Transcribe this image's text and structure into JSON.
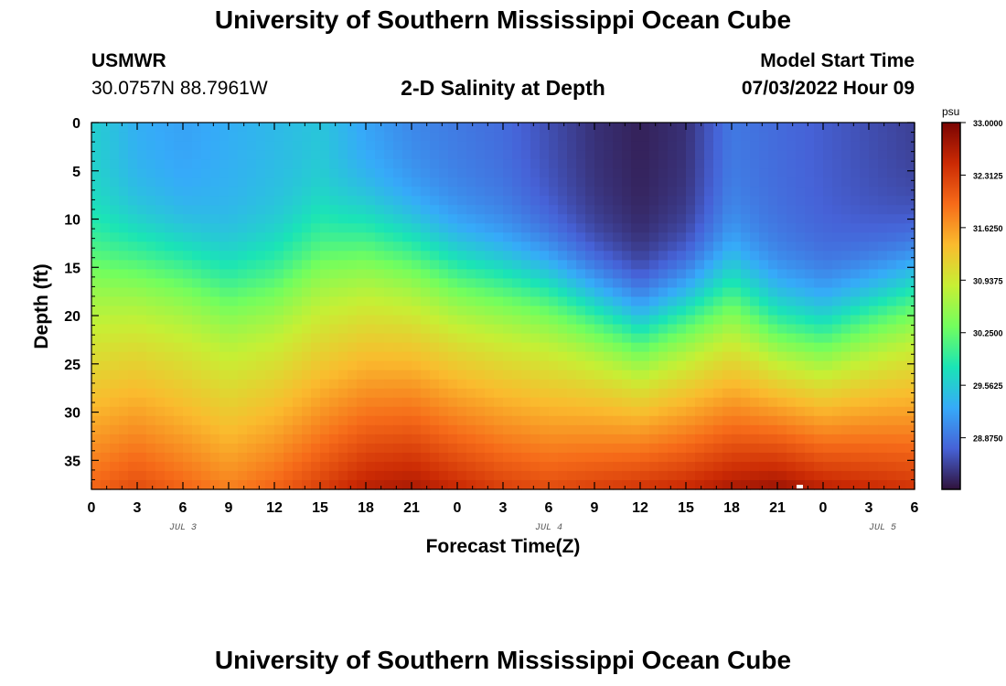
{
  "header": {
    "title": "University of Southern Mississippi Ocean Cube",
    "station": "USMWR",
    "coordinates": "30.0757N  88.7961W",
    "subtitle": "2-D Salinity at Depth",
    "model_start_label": "Model Start Time",
    "model_start_value": "07/03/2022 Hour 09"
  },
  "footer": {
    "title": "University of Southern Mississippi Ocean Cube"
  },
  "chart_data": {
    "type": "heatmap",
    "title": "2-D Salinity at Depth",
    "xlabel": "Forecast Time(Z)",
    "ylabel": "Depth (ft)",
    "x_ticks": [
      "0",
      "3",
      "6",
      "9",
      "12",
      "15",
      "18",
      "21",
      "0",
      "3",
      "6",
      "9",
      "12",
      "15",
      "18",
      "21",
      "0",
      "3",
      "6"
    ],
    "date_labels": [
      {
        "tick_index": 2,
        "label": "JUL 3"
      },
      {
        "tick_index": 10,
        "label": "JUL 4"
      },
      {
        "tick_index": 17.3,
        "label": "JUL 5"
      }
    ],
    "xlim_hours": [
      0,
      54
    ],
    "y_ticks": [
      0,
      5,
      10,
      15,
      20,
      25,
      30,
      35
    ],
    "ylim": [
      0,
      38
    ],
    "y_inverted": true,
    "colorbar": {
      "unit": "psu",
      "min": 28.2,
      "max": 33.0,
      "tick_labels": [
        "33.0000",
        "32.3125",
        "31.6250",
        "30.9375",
        "30.2500",
        "29.5625",
        "28.8750"
      ],
      "colormap": [
        "#30123b",
        "#4662d7",
        "#36aaf9",
        "#1ae4b6",
        "#72fe5e",
        "#c7ef34",
        "#fabb2e",
        "#f66b19",
        "#cb2a04",
        "#7a0403"
      ]
    },
    "surface_salinity_profile": [
      {
        "hour": 0,
        "value": 29.6
      },
      {
        "hour": 3,
        "value": 29.3
      },
      {
        "hour": 6,
        "value": 29.2
      },
      {
        "hour": 9,
        "value": 29.3
      },
      {
        "hour": 12,
        "value": 29.4
      },
      {
        "hour": 15,
        "value": 29.5
      },
      {
        "hour": 18,
        "value": 29.2
      },
      {
        "hour": 21,
        "value": 29.0
      },
      {
        "hour": 24,
        "value": 28.9
      },
      {
        "hour": 27,
        "value": 28.8
      },
      {
        "hour": 30,
        "value": 28.6
      },
      {
        "hour": 33,
        "value": 28.4
      },
      {
        "hour": 36,
        "value": 28.3
      },
      {
        "hour": 39,
        "value": 28.4
      },
      {
        "hour": 42,
        "value": 28.9
      },
      {
        "hour": 45,
        "value": 28.8
      },
      {
        "hour": 48,
        "value": 28.7
      },
      {
        "hour": 51,
        "value": 28.6
      },
      {
        "hour": 54,
        "value": 28.5
      }
    ],
    "halocline_depth_ft": [
      {
        "hour": 0,
        "value": 13
      },
      {
        "hour": 3,
        "value": 13
      },
      {
        "hour": 6,
        "value": 14
      },
      {
        "hour": 9,
        "value": 16
      },
      {
        "hour": 12,
        "value": 15
      },
      {
        "hour": 15,
        "value": 12
      },
      {
        "hour": 18,
        "value": 11
      },
      {
        "hour": 21,
        "value": 12
      },
      {
        "hour": 24,
        "value": 14
      },
      {
        "hour": 27,
        "value": 15
      },
      {
        "hour": 30,
        "value": 16
      },
      {
        "hour": 33,
        "value": 18
      },
      {
        "hour": 36,
        "value": 20
      },
      {
        "hour": 39,
        "value": 18
      },
      {
        "hour": 42,
        "value": 16
      },
      {
        "hour": 45,
        "value": 19
      },
      {
        "hour": 48,
        "value": 20
      },
      {
        "hour": 51,
        "value": 18
      },
      {
        "hour": 54,
        "value": 16
      }
    ],
    "bottom_salinity_profile": [
      {
        "hour": 0,
        "value": 32.0
      },
      {
        "hour": 3,
        "value": 32.2
      },
      {
        "hour": 6,
        "value": 32.0
      },
      {
        "hour": 9,
        "value": 31.8
      },
      {
        "hour": 12,
        "value": 32.0
      },
      {
        "hour": 15,
        "value": 32.3
      },
      {
        "hour": 18,
        "value": 32.6
      },
      {
        "hour": 21,
        "value": 32.7
      },
      {
        "hour": 24,
        "value": 32.5
      },
      {
        "hour": 27,
        "value": 32.3
      },
      {
        "hour": 30,
        "value": 32.2
      },
      {
        "hour": 33,
        "value": 32.3
      },
      {
        "hour": 36,
        "value": 32.4
      },
      {
        "hour": 39,
        "value": 32.5
      },
      {
        "hour": 42,
        "value": 32.7
      },
      {
        "hour": 45,
        "value": 32.8
      },
      {
        "hour": 48,
        "value": 32.6
      },
      {
        "hour": 51,
        "value": 32.5
      },
      {
        "hour": 54,
        "value": 32.4
      }
    ]
  }
}
